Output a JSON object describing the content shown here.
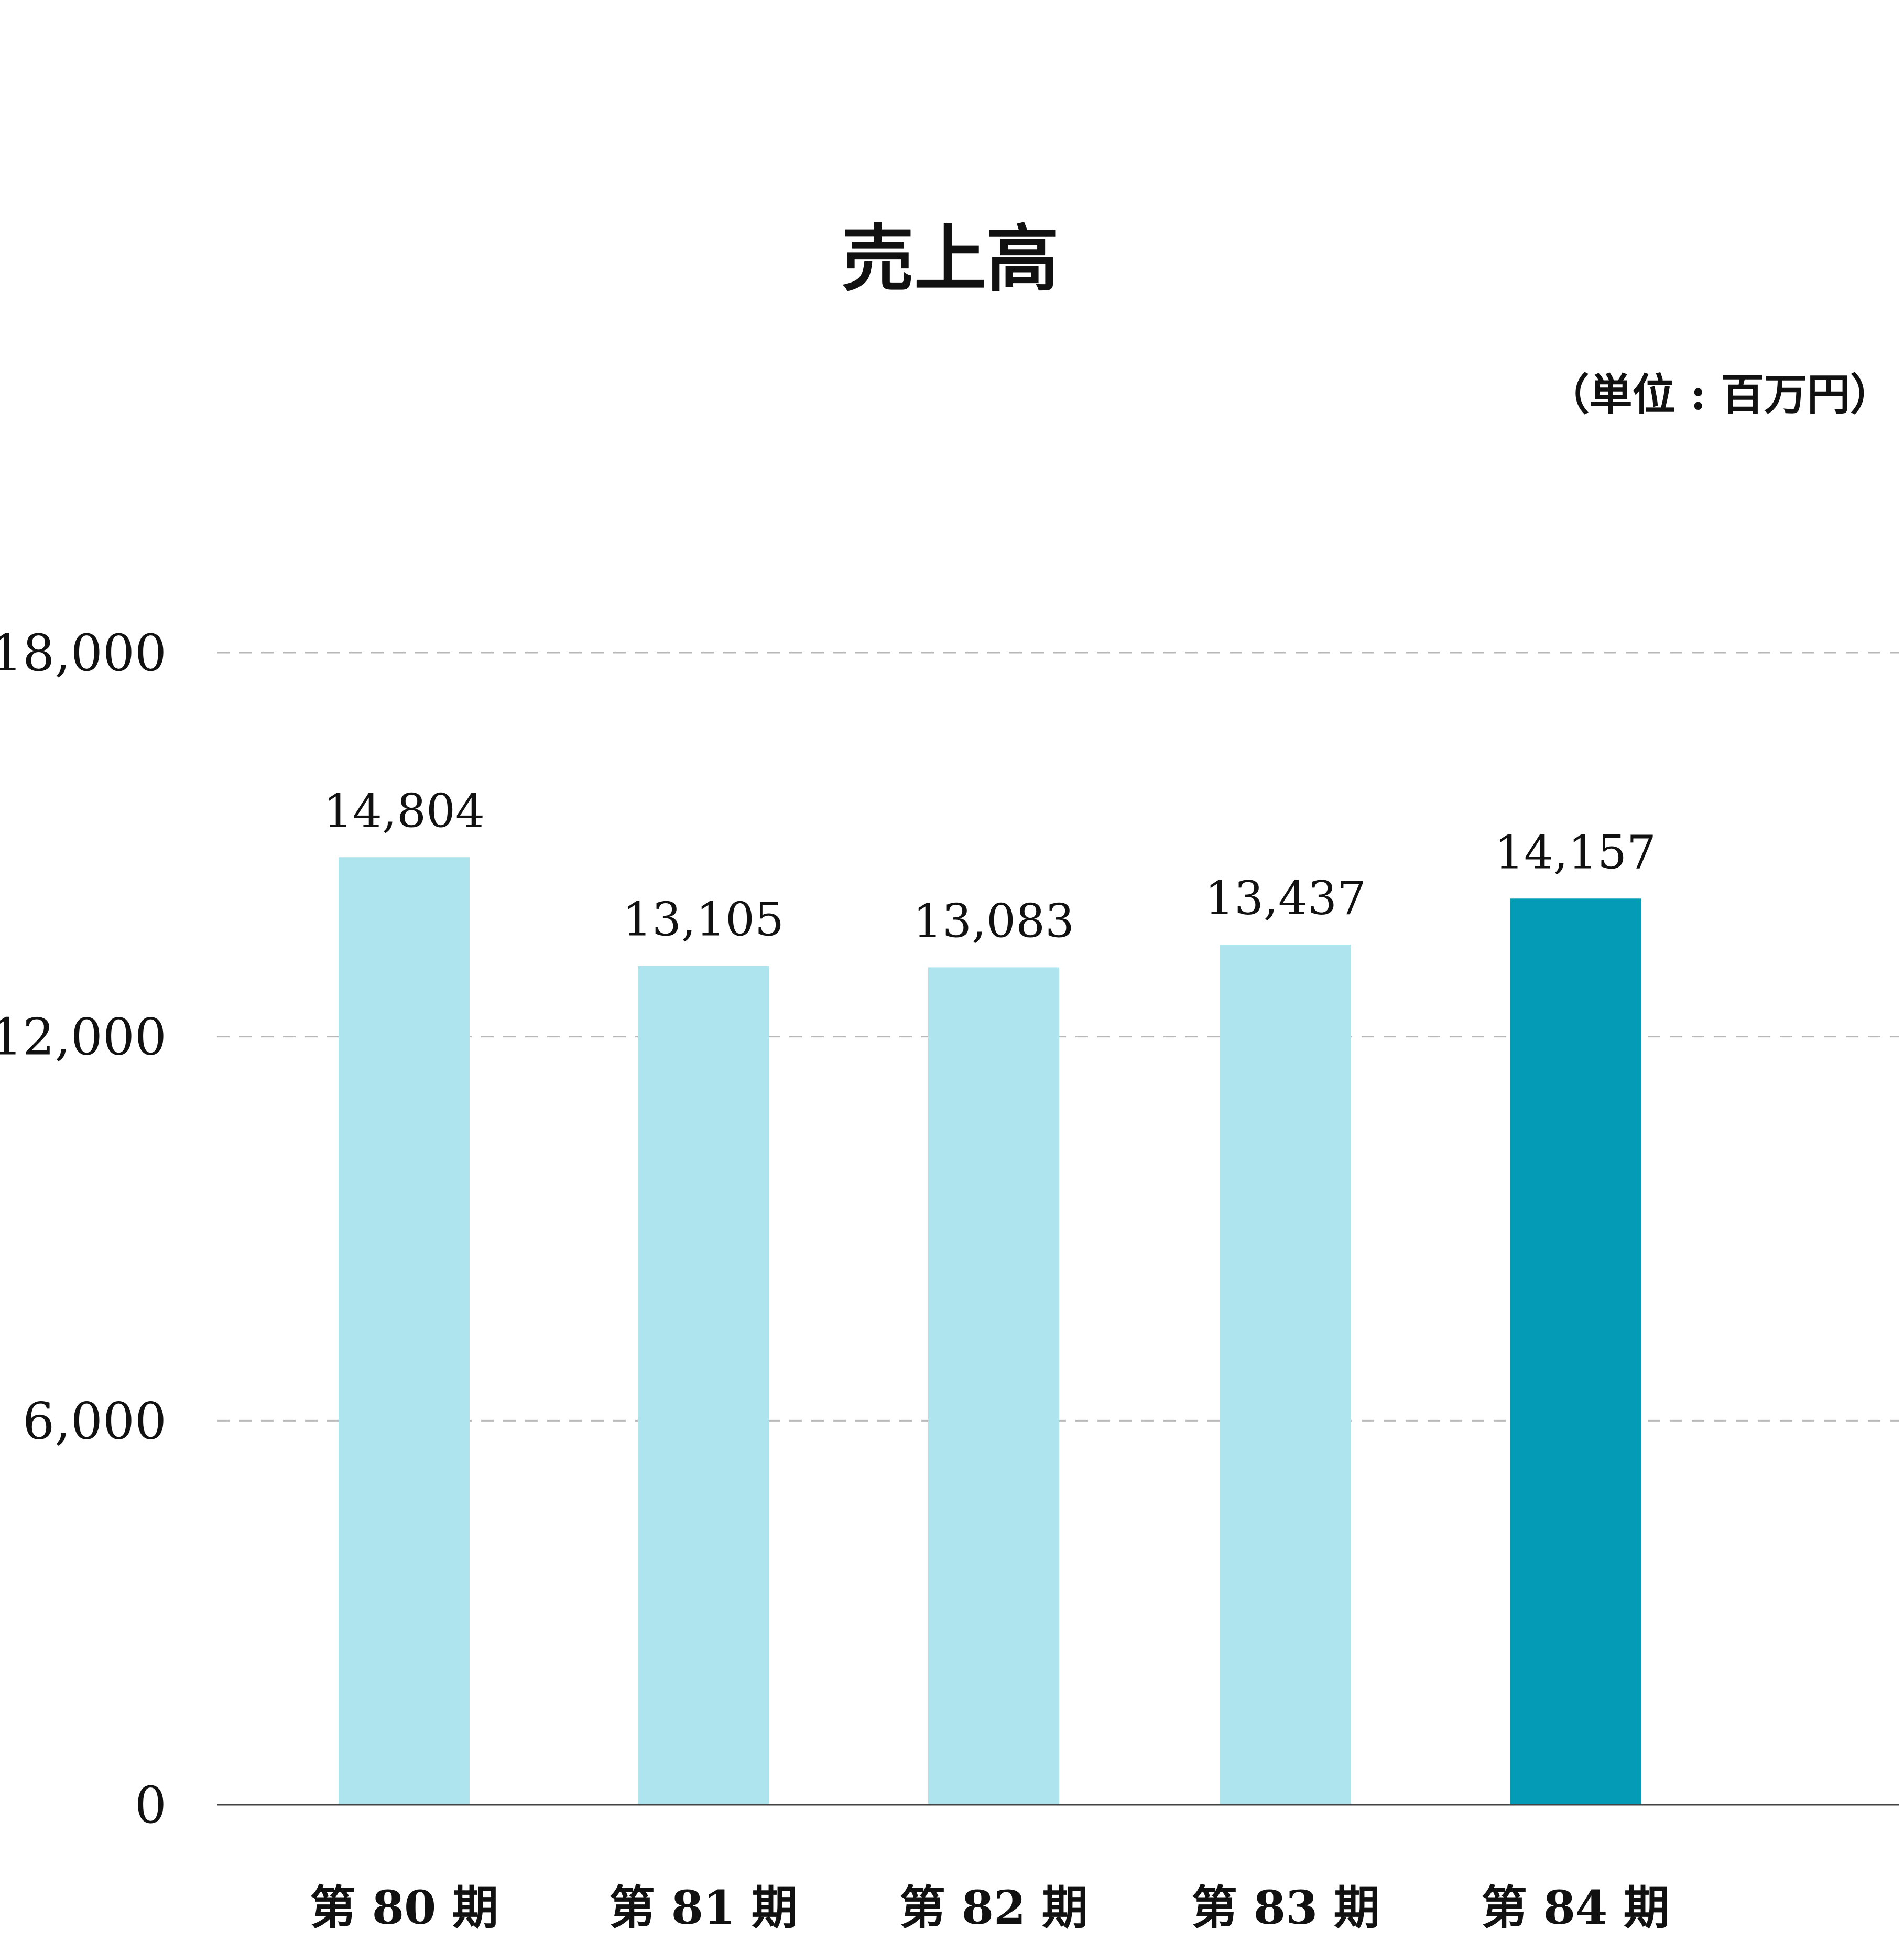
{
  "chart_data": {
    "type": "bar",
    "title": "売上高",
    "unit_label": "（単位 : 百万円）",
    "categories": [
      "第 80 期",
      "第 81 期",
      "第 82 期",
      "第 83 期",
      "第 84 期"
    ],
    "values": [
      14804,
      13105,
      13083,
      13437,
      14157
    ],
    "value_labels": [
      "14,804",
      "13,105",
      "13,083",
      "13,437",
      "14,157"
    ],
    "yticks": [
      0,
      6000,
      12000,
      18000
    ],
    "ytick_labels": [
      "0",
      "6,000",
      "12,000",
      "18,000"
    ],
    "ylim": [
      0,
      18000
    ],
    "grid": "horizontal-dashed",
    "legend": "none",
    "colors": {
      "bar": "#ade4ed",
      "highlight_bar": "#049bb7",
      "grid": "#b9b9b9",
      "axis": "#444444"
    },
    "highlight_index": 4
  }
}
